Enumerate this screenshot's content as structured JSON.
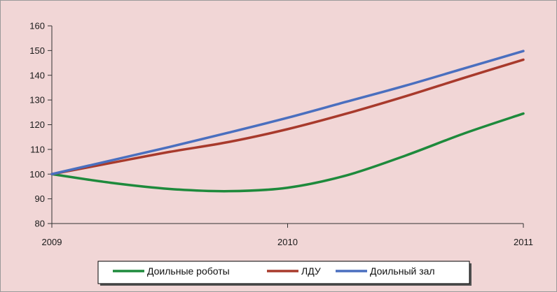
{
  "chart_data": {
    "type": "line",
    "title": "",
    "xlabel": "",
    "ylabel": "",
    "x": [
      2009,
      2010,
      2011
    ],
    "x_tick_labels": [
      "2009",
      "2010",
      "2011"
    ],
    "ylim": [
      80,
      160
    ],
    "y_ticks": [
      80,
      90,
      100,
      110,
      120,
      130,
      140,
      150,
      160
    ],
    "y_tick_labels": [
      "80",
      "90",
      "100",
      "110",
      "120",
      "130",
      "140",
      "150",
      "160"
    ],
    "grid": false,
    "legend_position": "bottom",
    "series": [
      {
        "name": "Доильные роботы",
        "color": "#1e8a3c",
        "points": [
          [
            2009,
            100
          ],
          [
            2009.25,
            96.5
          ],
          [
            2009.5,
            94
          ],
          [
            2009.75,
            93.1
          ],
          [
            2010,
            94.5
          ],
          [
            2010.25,
            99.5
          ],
          [
            2010.5,
            107.5
          ],
          [
            2010.75,
            116.5
          ],
          [
            2011,
            124.5
          ]
        ]
      },
      {
        "name": "ЛДУ",
        "color": "#a83a2c",
        "points": [
          [
            2009,
            100
          ],
          [
            2009.25,
            104.5
          ],
          [
            2009.5,
            109
          ],
          [
            2009.75,
            113
          ],
          [
            2010,
            118.2
          ],
          [
            2010.25,
            124.5
          ],
          [
            2010.5,
            131.5
          ],
          [
            2010.75,
            139
          ],
          [
            2011,
            146.3
          ]
        ]
      },
      {
        "name": "Доильный зал",
        "color": "#4a6fbf",
        "points": [
          [
            2009,
            100
          ],
          [
            2009.25,
            105.5
          ],
          [
            2009.5,
            111
          ],
          [
            2009.75,
            116.8
          ],
          [
            2010,
            122.8
          ],
          [
            2010.25,
            129.3
          ],
          [
            2010.5,
            135.8
          ],
          [
            2010.75,
            142.8
          ],
          [
            2011,
            149.8
          ]
        ]
      }
    ]
  }
}
